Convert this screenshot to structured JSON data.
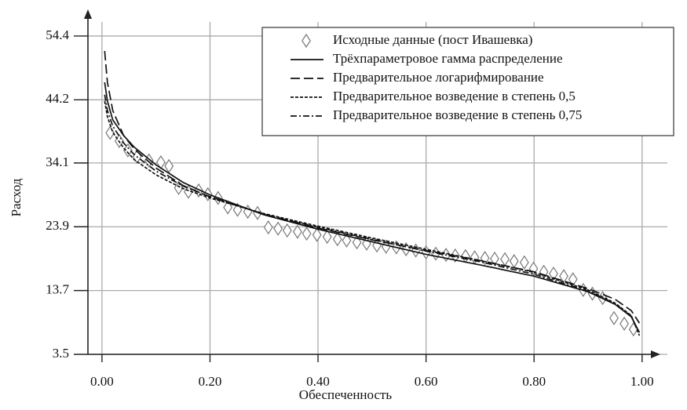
{
  "chart_data": {
    "type": "line",
    "xlabel": "Обеспеченность",
    "ylabel": "Расход",
    "xlim": [
      -0.026,
      1.025
    ],
    "ylim": [
      3.5,
      57.9
    ],
    "xticks": [
      {
        "value": 0,
        "label": "0.00"
      },
      {
        "value": 0.2,
        "label": "0.20"
      },
      {
        "value": 0.4,
        "label": "0.40"
      },
      {
        "value": 0.6,
        "label": "0.60"
      },
      {
        "value": 0.8,
        "label": "0.80"
      },
      {
        "value": 1,
        "label": "1.00"
      }
    ],
    "yticks": [
      3.5,
      13.7,
      23.9,
      34.1,
      44.2,
      54.4
    ],
    "grid": true,
    "legend": "upper right",
    "series": [
      {
        "name": "Исходные данные (пост Ивашевка)",
        "color": "#777777",
        "marker": "diamond",
        "linestyle": "none",
        "x": [
          0.015,
          0.032,
          0.048,
          0.065,
          0.087,
          0.109,
          0.124,
          0.142,
          0.16,
          0.179,
          0.196,
          0.215,
          0.233,
          0.251,
          0.27,
          0.288,
          0.308,
          0.326,
          0.343,
          0.362,
          0.379,
          0.398,
          0.417,
          0.436,
          0.453,
          0.472,
          0.49,
          0.509,
          0.526,
          0.545,
          0.563,
          0.581,
          0.6,
          0.618,
          0.637,
          0.654,
          0.673,
          0.69,
          0.709,
          0.727,
          0.746,
          0.763,
          0.782,
          0.799,
          0.818,
          0.836,
          0.855,
          0.872,
          0.891,
          0.908,
          0.927,
          0.948,
          0.967,
          0.984
        ],
        "values": [
          38.9,
          37.6,
          36.1,
          35.1,
          34.5,
          34.2,
          33.6,
          30.1,
          29.5,
          29.7,
          29.1,
          28.5,
          27.0,
          26.6,
          26.3,
          26.1,
          23.8,
          23.6,
          23.3,
          23.1,
          22.8,
          22.6,
          22.3,
          21.9,
          21.7,
          21.4,
          21.2,
          20.9,
          20.7,
          20.6,
          20.3,
          20.1,
          19.8,
          19.6,
          19.4,
          19.3,
          19.2,
          19.0,
          18.9,
          18.8,
          18.7,
          18.4,
          18.2,
          17.2,
          16.7,
          16.4,
          16.0,
          15.5,
          13.8,
          13.2,
          12.5,
          9.3,
          8.4,
          7.5
        ]
      },
      {
        "name": "Трёхпараметровое гамма распределение",
        "color": "#111111",
        "linestyle": "solid",
        "x": [
          0.005,
          0.01,
          0.02,
          0.04,
          0.06,
          0.1,
          0.15,
          0.2,
          0.3,
          0.4,
          0.5,
          0.6,
          0.7,
          0.8,
          0.9,
          0.95,
          0.98,
          0.995
        ],
        "values": [
          47,
          44,
          41,
          38.5,
          36.6,
          33.8,
          31,
          29,
          25.8,
          23.5,
          21.5,
          19.5,
          17.8,
          16,
          13.5,
          11.5,
          9.5,
          7
        ]
      },
      {
        "name": "Предварительное логарифмирование",
        "color": "#111111",
        "linestyle": "dashed",
        "x": [
          0.005,
          0.01,
          0.02,
          0.04,
          0.06,
          0.1,
          0.15,
          0.2,
          0.3,
          0.4,
          0.5,
          0.6,
          0.7,
          0.8,
          0.9,
          0.95,
          0.98,
          0.995
        ],
        "values": [
          52,
          47,
          42.5,
          38.5,
          36.3,
          33.3,
          30.5,
          28.7,
          25.9,
          23.7,
          21.8,
          20.1,
          18.5,
          16.7,
          14,
          12.3,
          10.5,
          8.5
        ]
      },
      {
        "name": "Предварительное возведение в степень 0,5",
        "color": "#111111",
        "linestyle": "dotted",
        "x": [
          0.005,
          0.01,
          0.02,
          0.04,
          0.06,
          0.1,
          0.15,
          0.2,
          0.3,
          0.4,
          0.5,
          0.6,
          0.7,
          0.8,
          0.9,
          0.95,
          0.98,
          0.995
        ],
        "values": [
          44,
          41.5,
          39,
          36.5,
          34.6,
          32.2,
          30,
          28.5,
          26,
          24,
          22.1,
          20.3,
          18.5,
          16.6,
          13.8,
          11.7,
          9.7,
          6.5
        ]
      },
      {
        "name": "Предварительное возведение в степень 0,75",
        "color": "#111111",
        "linestyle": "dashdot",
        "x": [
          0.005,
          0.01,
          0.02,
          0.04,
          0.06,
          0.1,
          0.15,
          0.2,
          0.3,
          0.4,
          0.5,
          0.6,
          0.7,
          0.8,
          0.9,
          0.95,
          0.98,
          0.995
        ],
        "values": [
          45,
          42.5,
          40,
          37.3,
          35.4,
          32.8,
          30.4,
          28.7,
          25.9,
          23.8,
          21.9,
          20,
          18.3,
          16.3,
          13.6,
          11.6,
          9.6,
          6.8
        ]
      }
    ]
  }
}
